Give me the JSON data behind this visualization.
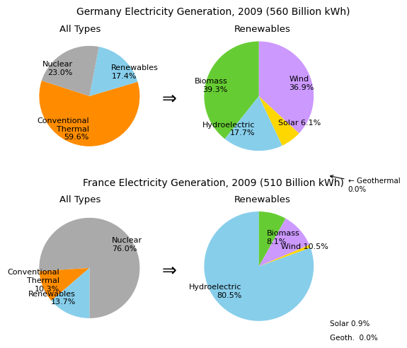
{
  "title1": "Germany Electricity Generation, 2009 (560 Billion kWh)",
  "title2": "France Electricity Generation, 2009 (510 Billion kWh)",
  "subtitle_all": "All Types",
  "subtitle_ren": "Renewables",
  "germany_all_labels": [
    "Conventional\nThermal\n59.6%",
    "Renewables\n17.4%",
    "Nuclear\n23.0%"
  ],
  "germany_all_values": [
    59.6,
    17.4,
    23.0
  ],
  "germany_all_colors": [
    "#FF8C00",
    "#87CEEB",
    "#AAAAAA"
  ],
  "germany_all_startangle": 162,
  "germany_ren_labels": [
    "Biomass\n39.3%",
    "Hydroelectric\n17.7%",
    "Solar 6.1%",
    "",
    "Wind\n36.9%"
  ],
  "germany_ren_values": [
    39.3,
    17.7,
    6.1,
    0.0,
    36.9
  ],
  "germany_ren_colors": [
    "#66CC33",
    "#87CEEB",
    "#FFD700",
    "#C8C800",
    "#CC99FF"
  ],
  "germany_ren_startangle": 90,
  "germany_geothermal_label": "← Geothermal\n0.0%",
  "france_all_labels": [
    "Nuclear\n76.0%",
    "Conventional\nThermal\n10.3%",
    "Renewables\n13.7%"
  ],
  "france_all_values": [
    76.0,
    10.3,
    13.7
  ],
  "france_all_colors": [
    "#AAAAAA",
    "#FF8C00",
    "#87CEEB"
  ],
  "france_all_startangle": 270,
  "france_ren_labels": [
    "Hydroelectric\n80.5%",
    "",
    "Wind 10.5%",
    "Biomass\n8.1%",
    ""
  ],
  "france_ren_values": [
    80.5,
    0.9,
    10.5,
    8.1,
    0.0
  ],
  "france_ren_colors": [
    "#87CEEB",
    "#FFD700",
    "#CC99FF",
    "#66CC33",
    "#C8C800"
  ],
  "france_ren_startangle": 90,
  "france_solar_label": "Solar 0.9%",
  "france_geoth_label": "Geoth.  0.0%",
  "arrow_symbol": "⇒",
  "bg_color": "#FFFFFF",
  "text_color": "#000000",
  "title_fontsize": 10,
  "label_fontsize": 8,
  "subtitle_fontsize": 9.5
}
